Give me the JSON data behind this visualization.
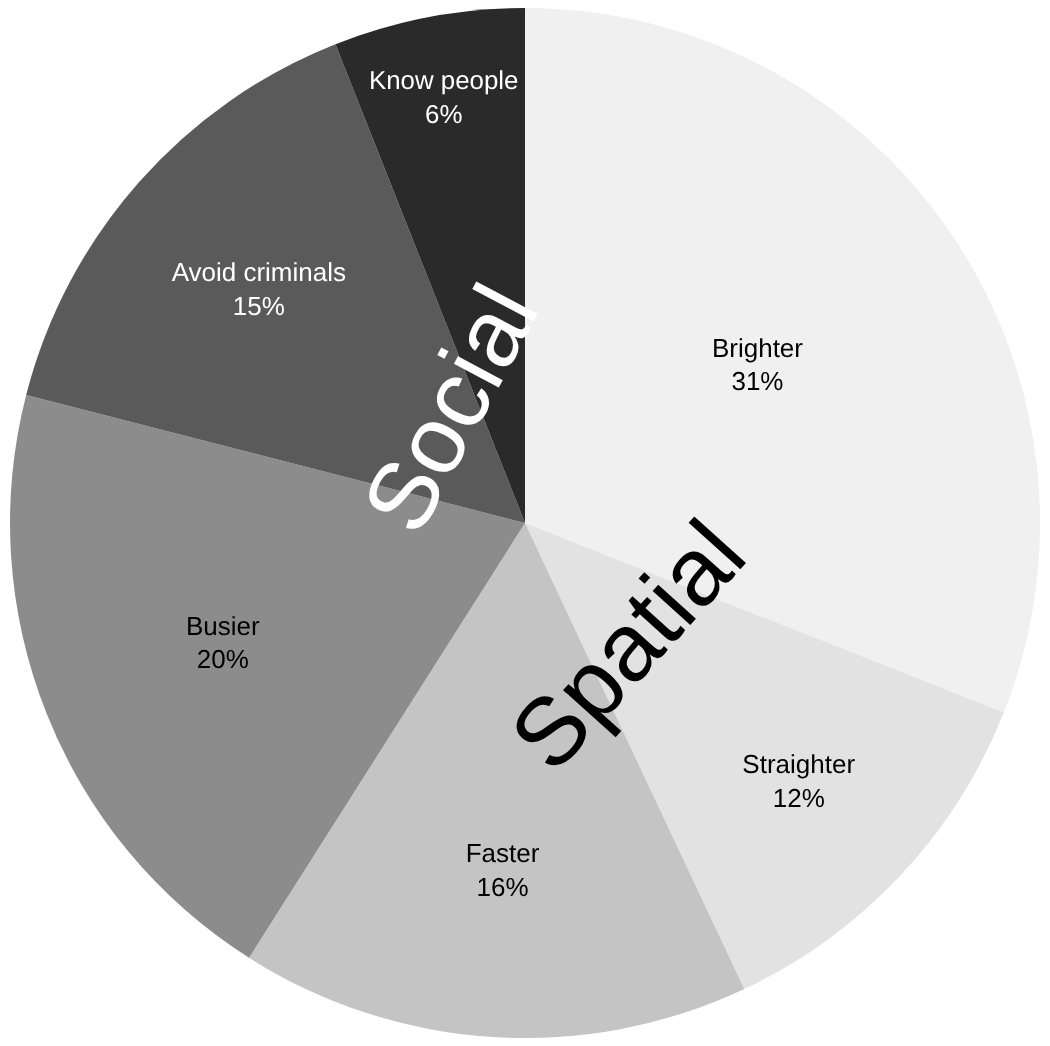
{
  "chart_data": {
    "type": "pie",
    "categories": [
      "Brighter",
      "Straighter",
      "Faster",
      "Busier",
      "Avoid criminals",
      "Know people"
    ],
    "values": [
      31,
      12,
      16,
      20,
      15,
      6
    ],
    "value_labels": [
      "31%",
      "12%",
      "16%",
      "20%",
      "15%",
      "6%"
    ],
    "colors": [
      "#f0f0f0",
      "#e2e2e2",
      "#c4c4c4",
      "#8c8c8c",
      "#5a5a5a",
      "#2a2a2a"
    ],
    "annotations": [
      "Social",
      "Spatial"
    ],
    "legend": false
  }
}
